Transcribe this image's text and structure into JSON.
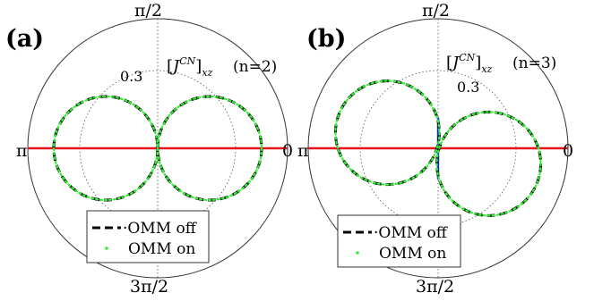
{
  "chart_data": [
    {
      "type": "polar",
      "panel_label": "(a)",
      "quantity_label": "[J^{CN}]_{xz}",
      "n_label": "(n=2)",
      "angle_labels": {
        "top": "π/2",
        "left": "π",
        "right": "0",
        "bottom": "3π/2"
      },
      "radial_tick": "0.3",
      "radial_tick_value": 0.3,
      "r_max": 0.5,
      "series": [
        {
          "name": "OMM off",
          "style": "dashed-black",
          "circles": [
            {
              "center": [
                0.2,
                0.0
              ],
              "radius": 0.2
            },
            {
              "center": [
                -0.2,
                0.0
              ],
              "radius": 0.2
            }
          ]
        },
        {
          "name": "OMM on",
          "style": "dotted-green",
          "circles": [
            {
              "center": [
                0.2,
                0.0
              ],
              "radius": 0.2
            },
            {
              "center": [
                -0.2,
                0.0
              ],
              "radius": 0.2
            }
          ]
        }
      ],
      "axis_line": {
        "color": "#e8141c",
        "from": [
          -0.5,
          0.0
        ],
        "to": [
          0.5,
          0.0
        ]
      },
      "legend": {
        "placement": "bottom-center",
        "entries": [
          "OMM off",
          "OMM on"
        ]
      }
    },
    {
      "type": "polar",
      "panel_label": "(b)",
      "quantity_label": "[J^{CN}]_{xz}",
      "n_label": "(n=3)",
      "angle_labels": {
        "top": "π/2",
        "left": "π",
        "right": "0",
        "bottom": "3π/2"
      },
      "radial_tick": "0.3",
      "radial_tick_value": 0.3,
      "r_max": 0.5,
      "series": [
        {
          "name": "OMM off",
          "style": "dashed-black",
          "circles": [
            {
              "center": [
                0.195,
                -0.06
              ],
              "radius": 0.2
            },
            {
              "center": [
                -0.195,
                0.06
              ],
              "radius": 0.2
            }
          ]
        },
        {
          "name": "OMM on",
          "style": "dotted-green",
          "circles": [
            {
              "center": [
                0.195,
                -0.06
              ],
              "radius": 0.2
            },
            {
              "center": [
                -0.195,
                0.06
              ],
              "radius": 0.2
            }
          ]
        }
      ],
      "axis_line": {
        "color": "#e8141c",
        "from": [
          -0.5,
          0.0
        ],
        "to": [
          0.5,
          0.0
        ]
      },
      "vertical_segment": {
        "color": "#1a1aff",
        "from": [
          0.0,
          0.12
        ],
        "to": [
          0.0,
          -0.12
        ]
      },
      "legend": {
        "placement": "bottom-left",
        "entries": [
          "OMM off",
          "OMM on"
        ]
      }
    }
  ]
}
